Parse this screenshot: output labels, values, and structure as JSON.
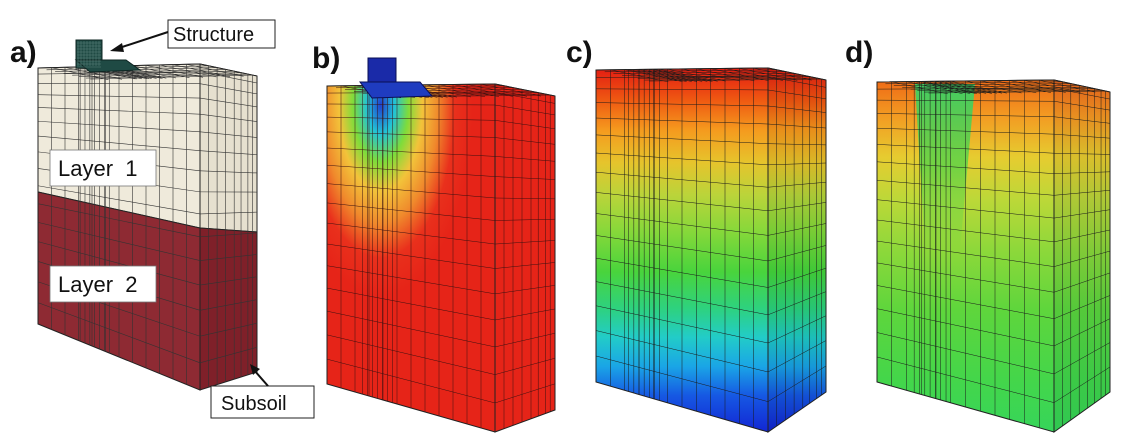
{
  "panels": [
    {
      "label": "a)"
    },
    {
      "label": "b)"
    },
    {
      "label": "c)"
    },
    {
      "label": "d)"
    }
  ],
  "annotations": {
    "structure": "Structure",
    "layer1": "Layer  1",
    "layer2": "Layer  2",
    "subsoil": "Subsoil"
  },
  "colors": {
    "layer1": "#efeadb",
    "layer2": "#8e2a33",
    "structure": "#1f4a44",
    "mesh": "#222222"
  }
}
